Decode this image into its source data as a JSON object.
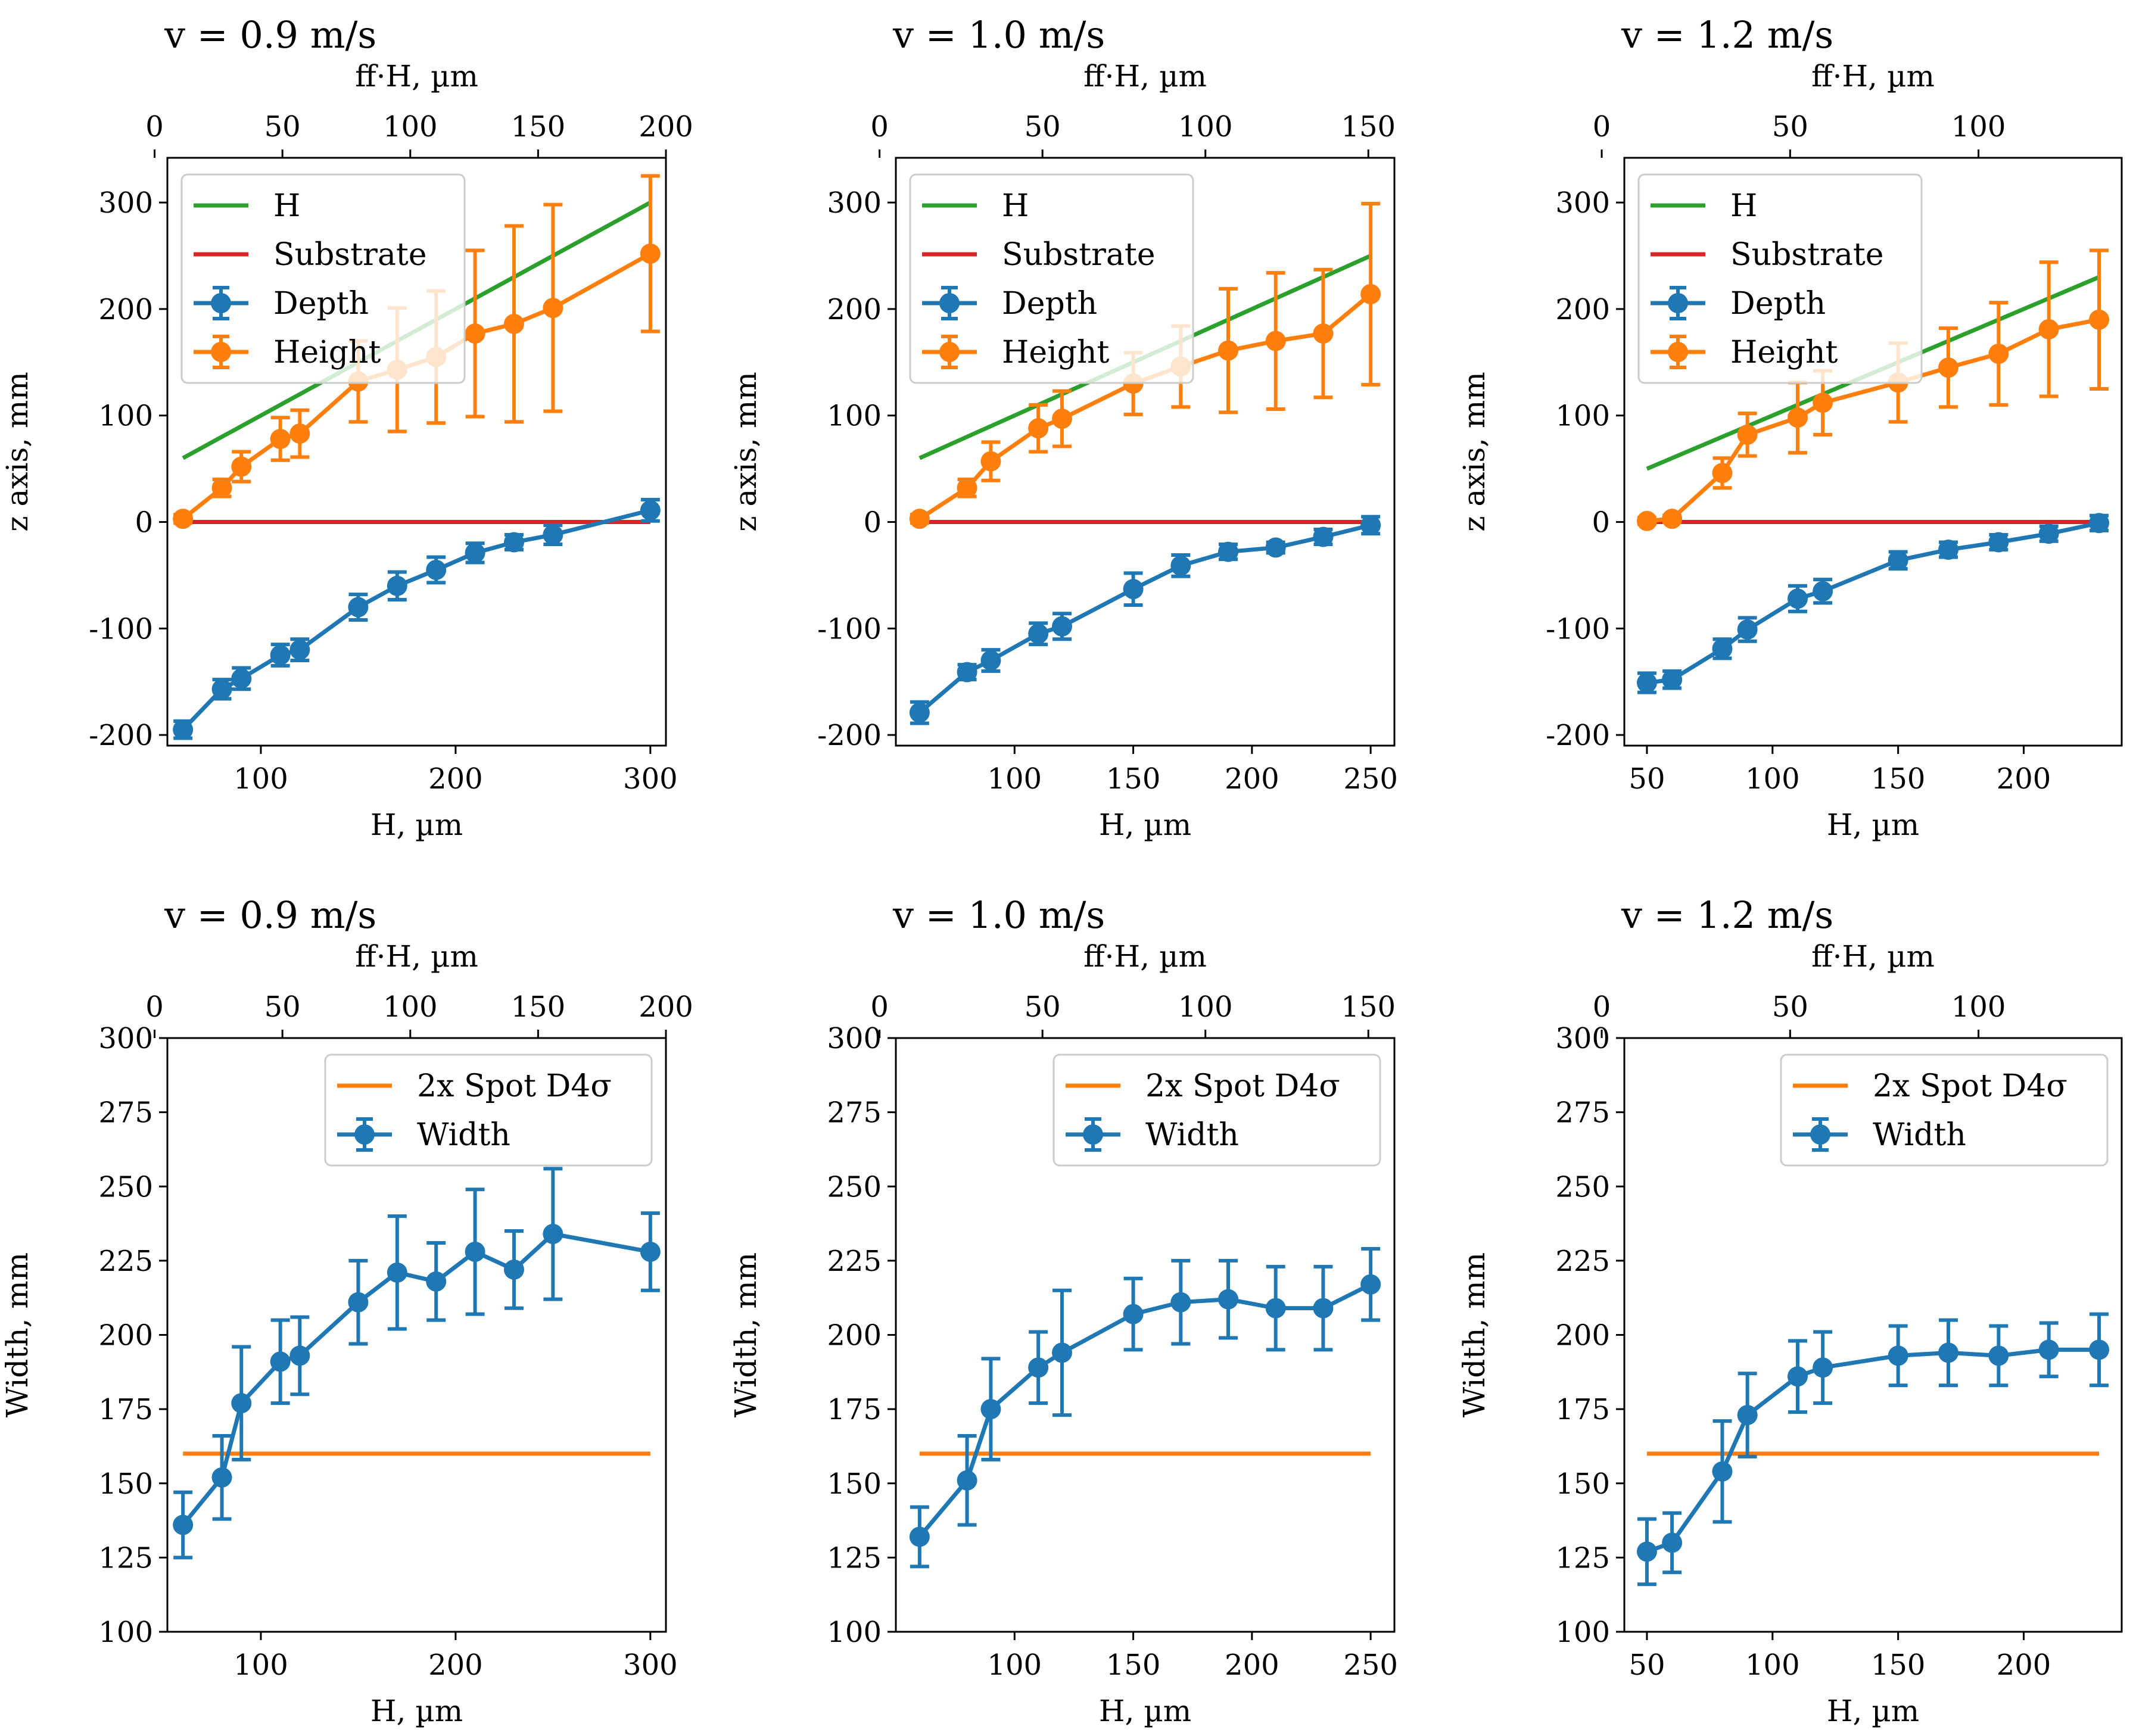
{
  "colors": {
    "H": "#2ca02c",
    "Substrate": "#d62728",
    "Depth": "#1f77b4",
    "Height": "#ff7f0e",
    "Spot": "#ff7f0e",
    "Width": "#1f77b4"
  },
  "chart_data": [
    {
      "id": "top-0.9",
      "type": "line",
      "title": "v =  0.9 m/s",
      "xlabel": "H, µm",
      "ylabel": "z axis, mm",
      "x2label": "ff·H, µm",
      "xlim": [
        52,
        308
      ],
      "ylim": [
        -210,
        342
      ],
      "xticks": [
        100,
        200,
        300
      ],
      "yticks": [
        -200,
        -100,
        0,
        100,
        200,
        300
      ],
      "x2lim": [
        5,
        200
      ],
      "x2ticks": [
        0,
        50,
        100,
        150,
        200
      ],
      "legend": "upper-left",
      "series": [
        {
          "name": "H",
          "kind": "line",
          "x": [
            60,
            300
          ],
          "y": [
            60,
            300
          ]
        },
        {
          "name": "Substrate",
          "kind": "line",
          "x": [
            60,
            300
          ],
          "y": [
            0,
            0
          ]
        },
        {
          "name": "Depth",
          "kind": "errorbar",
          "x": [
            60,
            80,
            90,
            110,
            120,
            150,
            170,
            190,
            210,
            230,
            250,
            300
          ],
          "y": [
            -195,
            -157,
            -147,
            -125,
            -120,
            -80,
            -60,
            -45,
            -29,
            -19,
            -12,
            11
          ],
          "err": [
            8,
            9,
            10,
            10,
            10,
            12,
            13,
            12,
            9,
            7,
            9,
            10
          ]
        },
        {
          "name": "Height",
          "kind": "errorbar",
          "x": [
            60,
            80,
            90,
            110,
            120,
            150,
            170,
            190,
            210,
            230,
            250,
            300
          ],
          "y": [
            3,
            32,
            52,
            78,
            83,
            132,
            143,
            155,
            177,
            186,
            201,
            252
          ],
          "err": [
            4,
            8,
            14,
            20,
            22,
            38,
            58,
            62,
            78,
            92,
            97,
            73
          ]
        }
      ]
    },
    {
      "id": "top-1.0",
      "type": "line",
      "title": "v =  1.0 m/s",
      "xlabel": "H, µm",
      "ylabel": "z axis, mm",
      "x2label": "ff·H, µm",
      "xlim": [
        50,
        260
      ],
      "ylim": [
        -210,
        342
      ],
      "xticks": [
        100,
        150,
        200,
        250
      ],
      "yticks": [
        -200,
        -100,
        0,
        100,
        200,
        300
      ],
      "x2lim": [
        5,
        158
      ],
      "x2ticks": [
        0,
        50,
        100,
        150
      ],
      "legend": "upper-left",
      "series": [
        {
          "name": "H",
          "kind": "line",
          "x": [
            60,
            250
          ],
          "y": [
            60,
            250
          ]
        },
        {
          "name": "Substrate",
          "kind": "line",
          "x": [
            60,
            250
          ],
          "y": [
            0,
            0
          ]
        },
        {
          "name": "Depth",
          "kind": "errorbar",
          "x": [
            60,
            80,
            90,
            110,
            120,
            150,
            170,
            190,
            210,
            230,
            250
          ],
          "y": [
            -179,
            -141,
            -130,
            -105,
            -98,
            -63,
            -41,
            -28,
            -24,
            -14,
            -3
          ],
          "err": [
            10,
            7,
            10,
            10,
            12,
            15,
            10,
            7,
            5,
            7,
            8
          ]
        },
        {
          "name": "Height",
          "kind": "errorbar",
          "x": [
            60,
            80,
            90,
            110,
            120,
            150,
            170,
            190,
            210,
            230,
            250
          ],
          "y": [
            3,
            32,
            57,
            88,
            97,
            130,
            146,
            161,
            170,
            177,
            214
          ],
          "err": [
            4,
            8,
            18,
            22,
            26,
            29,
            38,
            58,
            64,
            60,
            85
          ]
        }
      ]
    },
    {
      "id": "top-1.2",
      "type": "line",
      "title": "v =  1.2 m/s",
      "xlabel": "H, µm",
      "ylabel": "z axis, mm",
      "x2label": "ff·H, µm",
      "xlim": [
        41,
        239
      ],
      "ylim": [
        -210,
        342
      ],
      "xticks": [
        50,
        100,
        150,
        200
      ],
      "yticks": [
        -200,
        -100,
        0,
        100,
        200,
        300
      ],
      "x2lim": [
        6,
        138
      ],
      "x2ticks": [
        0,
        50,
        100
      ],
      "legend": "upper-left",
      "series": [
        {
          "name": "H",
          "kind": "line",
          "x": [
            50,
            230
          ],
          "y": [
            50,
            230
          ]
        },
        {
          "name": "Substrate",
          "kind": "line",
          "x": [
            50,
            230
          ],
          "y": [
            0,
            0
          ]
        },
        {
          "name": "Depth",
          "kind": "errorbar",
          "x": [
            50,
            60,
            80,
            90,
            110,
            120,
            150,
            170,
            190,
            210,
            230
          ],
          "y": [
            -151,
            -148,
            -119,
            -101,
            -72,
            -65,
            -36,
            -26,
            -19,
            -11,
            -1
          ],
          "err": [
            9,
            8,
            9,
            11,
            12,
            11,
            8,
            7,
            7,
            7,
            7
          ]
        },
        {
          "name": "Height",
          "kind": "errorbar",
          "x": [
            50,
            60,
            80,
            90,
            110,
            120,
            150,
            170,
            190,
            210,
            230
          ],
          "y": [
            1,
            3,
            46,
            82,
            98,
            112,
            131,
            145,
            158,
            181,
            190
          ],
          "err": [
            3,
            3,
            14,
            20,
            33,
            30,
            37,
            37,
            48,
            63,
            65
          ]
        }
      ]
    },
    {
      "id": "bottom-0.9",
      "type": "line",
      "title": "v =  0.9 m/s",
      "xlabel": "H, µm",
      "ylabel": "Width, mm",
      "x2label": "ff·H, µm",
      "xlim": [
        52,
        308
      ],
      "ylim": [
        100,
        300
      ],
      "xticks": [
        100,
        200,
        300
      ],
      "yticks": [
        100,
        125,
        150,
        175,
        200,
        225,
        250,
        275,
        300
      ],
      "x2lim": [
        5,
        200
      ],
      "x2ticks": [
        0,
        50,
        100,
        150,
        200
      ],
      "legend": "upper-right",
      "series": [
        {
          "name": "2x Spot D4σ",
          "kind": "line",
          "x": [
            60,
            300
          ],
          "y": [
            160,
            160
          ]
        },
        {
          "name": "Width",
          "kind": "errorbar",
          "x": [
            60,
            80,
            90,
            110,
            120,
            150,
            170,
            190,
            210,
            230,
            250,
            300
          ],
          "y": [
            136,
            152,
            177,
            191,
            193,
            211,
            221,
            218,
            228,
            222,
            234,
            228
          ],
          "err": [
            11,
            14,
            19,
            14,
            13,
            14,
            19,
            13,
            21,
            13,
            22,
            13
          ]
        }
      ]
    },
    {
      "id": "bottom-1.0",
      "type": "line",
      "title": "v =  1.0 m/s",
      "xlabel": "H, µm",
      "ylabel": "Width, mm",
      "x2label": "ff·H, µm",
      "xlim": [
        50,
        260
      ],
      "ylim": [
        100,
        300
      ],
      "xticks": [
        100,
        150,
        200,
        250
      ],
      "yticks": [
        100,
        125,
        150,
        175,
        200,
        225,
        250,
        275,
        300
      ],
      "x2lim": [
        5,
        158
      ],
      "x2ticks": [
        0,
        50,
        100,
        150
      ],
      "legend": "upper-right",
      "series": [
        {
          "name": "2x Spot D4σ",
          "kind": "line",
          "x": [
            60,
            250
          ],
          "y": [
            160,
            160
          ]
        },
        {
          "name": "Width",
          "kind": "errorbar",
          "x": [
            60,
            80,
            90,
            110,
            120,
            150,
            170,
            190,
            210,
            230,
            250
          ],
          "y": [
            132,
            151,
            175,
            189,
            194,
            207,
            211,
            212,
            209,
            209,
            217
          ],
          "err": [
            10,
            15,
            17,
            12,
            21,
            12,
            14,
            13,
            14,
            14,
            12
          ]
        }
      ]
    },
    {
      "id": "bottom-1.2",
      "type": "line",
      "title": "v =  1.2 m/s",
      "xlabel": "H, µm",
      "ylabel": "Width, mm",
      "x2label": "ff·H, µm",
      "xlim": [
        41,
        239
      ],
      "ylim": [
        100,
        300
      ],
      "xticks": [
        50,
        100,
        150,
        200
      ],
      "yticks": [
        100,
        125,
        150,
        175,
        200,
        225,
        250,
        275,
        300
      ],
      "x2lim": [
        6,
        138
      ],
      "x2ticks": [
        0,
        50,
        100
      ],
      "legend": "upper-right",
      "series": [
        {
          "name": "2x Spot D4σ",
          "kind": "line",
          "x": [
            50,
            230
          ],
          "y": [
            160,
            160
          ]
        },
        {
          "name": "Width",
          "kind": "errorbar",
          "x": [
            50,
            60,
            80,
            90,
            110,
            120,
            150,
            170,
            190,
            210,
            230
          ],
          "y": [
            127,
            130,
            154,
            173,
            186,
            189,
            193,
            194,
            193,
            195,
            195
          ],
          "err": [
            11,
            10,
            17,
            14,
            12,
            12,
            10,
            11,
            10,
            9,
            12
          ]
        }
      ]
    }
  ]
}
